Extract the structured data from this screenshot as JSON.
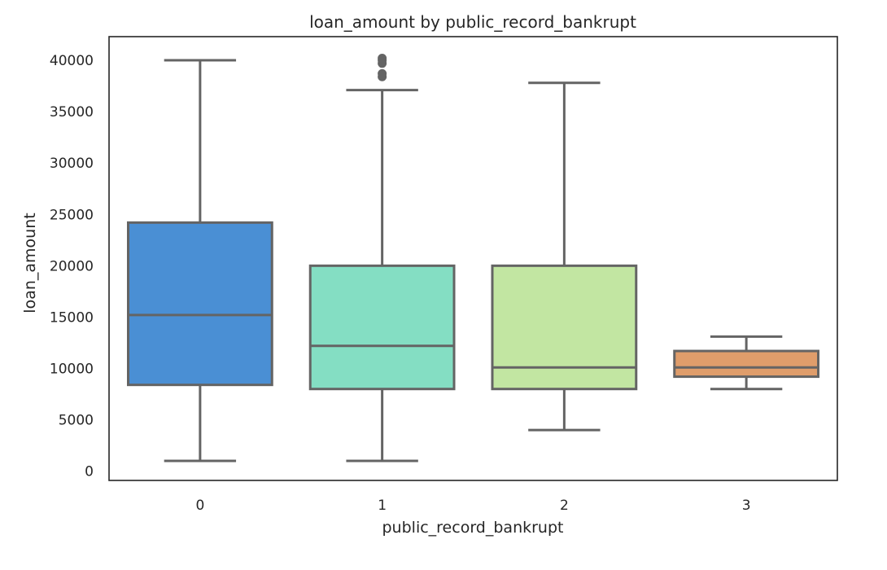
{
  "chart_data": {
    "type": "box",
    "title": "loan_amount by public_record_bankrupt",
    "xlabel": "public_record_bankrupt",
    "ylabel": "loan_amount",
    "ylim": [
      -900,
      42300
    ],
    "yticks": [
      0,
      5000,
      10000,
      15000,
      20000,
      25000,
      30000,
      35000,
      40000
    ],
    "grid": false,
    "categories": [
      "0",
      "1",
      "2",
      "3"
    ],
    "boxes": [
      {
        "category": "0",
        "whisker_low": 1000,
        "q1": 8400,
        "median": 15200,
        "q3": 24200,
        "whisker_high": 40000,
        "outliers": [],
        "color": "#4a8fd4"
      },
      {
        "category": "1",
        "whisker_low": 1000,
        "q1": 8000,
        "median": 12200,
        "q3": 20000,
        "whisker_high": 37100,
        "outliers": [
          38400,
          38700,
          39700,
          40000,
          40200
        ],
        "color": "#84dec3"
      },
      {
        "category": "2",
        "whisker_low": 4000,
        "q1": 8000,
        "median": 10100,
        "q3": 20000,
        "whisker_high": 37800,
        "outliers": [],
        "color": "#c2e6a2"
      },
      {
        "category": "3",
        "whisker_low": 8000,
        "q1": 9200,
        "median": 10100,
        "q3": 11700,
        "whisker_high": 13100,
        "outliers": [],
        "color": "#df9d6b"
      }
    ],
    "line_color": "#646464",
    "frame_color": "#262626"
  }
}
